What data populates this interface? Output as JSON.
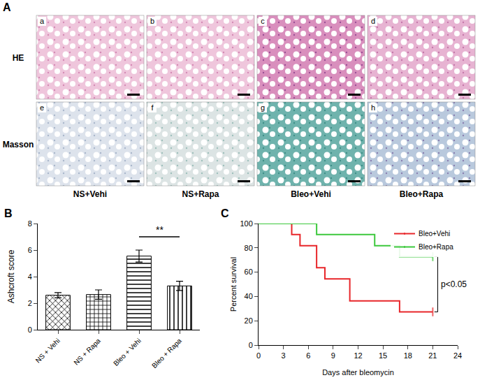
{
  "image_panel": {
    "label": "A",
    "rows": [
      {
        "label": "HE",
        "cells": [
          "a",
          "b",
          "c",
          "d"
        ]
      },
      {
        "label": "Masson",
        "cells": [
          "e",
          "f",
          "g",
          "h"
        ]
      }
    ],
    "columns": [
      "NS+Vehi",
      "NS+Rapa",
      "Bleo+Vehi",
      "Bleo+Rapa"
    ]
  },
  "chart_data": [
    {
      "type": "bar",
      "annotations": [
        {
          "text": "B"
        },
        {
          "text": "**",
          "between": [
            "Bleo + Vehi",
            "Bleo + Rapa"
          ],
          "y": 7
        }
      ],
      "categories": [
        "NS + Vehi",
        "NS + Rapa",
        "Bleo + Vehi",
        "Bleo + Rapa"
      ],
      "values": [
        2.6,
        2.65,
        5.55,
        3.3
      ],
      "errors": [
        0.2,
        0.35,
        0.45,
        0.35
      ],
      "color": "#000000",
      "ylabel": "Ashcroft score",
      "ylim": [
        0,
        8
      ],
      "yticks": [
        0,
        2,
        4,
        6,
        8
      ],
      "grid": false
    },
    {
      "type": "line",
      "line_style": "step",
      "annotations": [
        {
          "text": "C"
        },
        {
          "text": "p<0.05",
          "between": [
            "Bleo+Vehi",
            "Bleo+Rapa"
          ]
        }
      ],
      "xlabel": "Days after bleomycin",
      "ylabel": "Percent survival",
      "xlim": [
        0,
        24
      ],
      "xticks": [
        0,
        3,
        6,
        9,
        12,
        15,
        18,
        21,
        24
      ],
      "ylim": [
        0,
        100
      ],
      "yticks": [
        0,
        20,
        40,
        60,
        80,
        100
      ],
      "grid": false,
      "legend": "top-right",
      "series": [
        {
          "name": "Bleo+Vehi",
          "color": "#e8262a",
          "x": [
            0,
            4,
            5,
            7,
            8,
            11,
            17,
            21
          ],
          "values": [
            100,
            90.9,
            81.8,
            63.6,
            54.5,
            36.4,
            27.3,
            27.3
          ]
        },
        {
          "name": "Bleo+Rapa",
          "color": "#3cc83c",
          "x": [
            0,
            7,
            14,
            17,
            21
          ],
          "values": [
            100,
            90.9,
            81.8,
            72.7,
            72.7
          ]
        }
      ]
    }
  ]
}
